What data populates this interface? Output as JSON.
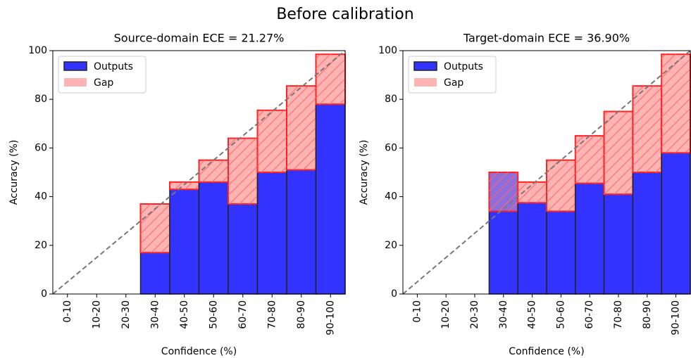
{
  "title": "Before calibration",
  "chart_data": [
    {
      "type": "reliability",
      "title": "Source-domain ECE = 21.27%",
      "xlabel": "Confidence (%)",
      "ylabel": "Accuracy (%)",
      "categories": [
        "0-10",
        "10-20",
        "20-30",
        "30-40",
        "40-50",
        "50-60",
        "60-70",
        "70-80",
        "80-90",
        "90-100"
      ],
      "series": [
        {
          "name": "Outputs",
          "color": "#3333ff",
          "values": [
            null,
            null,
            null,
            17,
            43,
            46,
            37,
            50,
            51,
            78
          ]
        },
        {
          "name": "Gap",
          "color": "#ffb3b3",
          "values": [
            null,
            null,
            null,
            20,
            3,
            9,
            27,
            25.5,
            34.5,
            20.5
          ]
        }
      ],
      "ylim": [
        0,
        100
      ],
      "yticks": [
        0,
        20,
        40,
        60,
        80,
        100
      ],
      "legend": "upper left"
    },
    {
      "type": "reliability",
      "title": "Target-domain ECE = 36.90%",
      "xlabel": "Confidence (%)",
      "ylabel": "Accuracy (%)",
      "categories": [
        "0-10",
        "10-20",
        "20-30",
        "30-40",
        "40-50",
        "50-60",
        "60-70",
        "70-80",
        "80-90",
        "90-100"
      ],
      "series": [
        {
          "name": "Outputs",
          "color": "#3333ff",
          "values": [
            null,
            null,
            null,
            50,
            37.5,
            34,
            45.5,
            41,
            50,
            58
          ]
        },
        {
          "name": "Gap",
          "color": "#ffb3b3",
          "values": [
            null,
            null,
            null,
            -16,
            8.5,
            21,
            19.5,
            34,
            35.5,
            40.5
          ]
        }
      ],
      "ylim": [
        0,
        100
      ],
      "yticks": [
        0,
        20,
        40,
        60,
        80,
        100
      ],
      "legend": "upper left"
    }
  ]
}
